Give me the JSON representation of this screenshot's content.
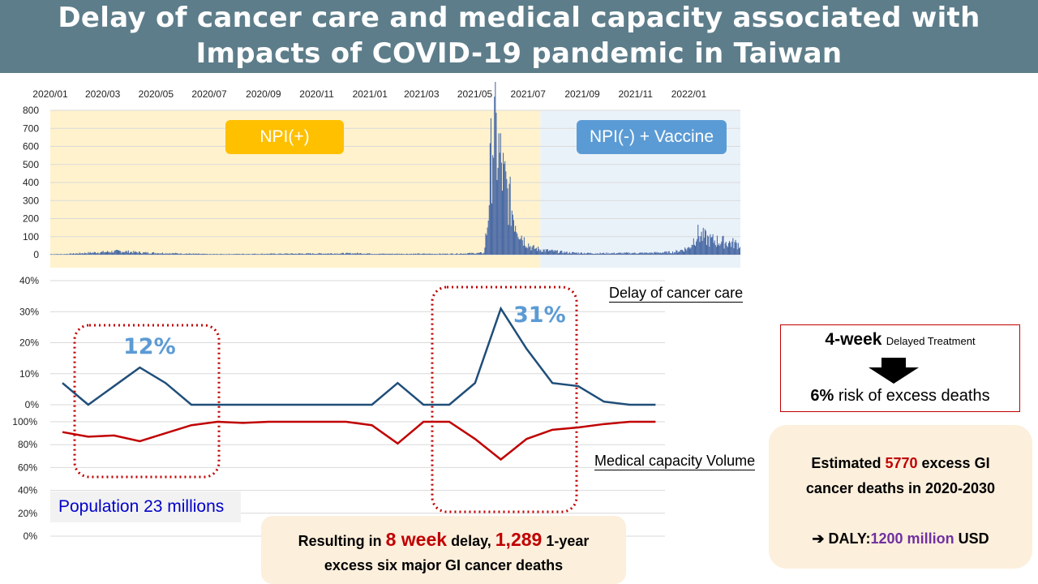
{
  "title": {
    "line1": "Delay of cancer care and medical capacity associated with",
    "line2": "Impacts of COVID-19 pandemic in Taiwan"
  },
  "colors": {
    "title_bg": "#5d7d8a",
    "npi_pos_bg": "#fff2cc",
    "npi_neg_bg": "#eaf2f9",
    "cases_bar": "#4a6aa5",
    "delay_line": "#1f4e79",
    "capacity_line": "#c00000",
    "accent_blue": "#5b9bd5",
    "accent_red": "#c00000",
    "accent_purple": "#7030a0"
  },
  "annotations": {
    "npi_pos": "NPI(+)",
    "npi_neg": "NPI(-) + Vaccine",
    "delay_label": "Delay of cancer care",
    "capacity_label": "Medical capacity Volume",
    "peak1_label": "12%",
    "peak2_label": "31%",
    "population": "Population 23 millions"
  },
  "result_box": {
    "p1": "Resulting in ",
    "weeks": "8 week",
    "p2": " delay, ",
    "deaths": "1,289",
    "p3": " 1-year",
    "line2": "excess six major GI cancer deaths"
  },
  "risk_box": {
    "top_bold": "4-week",
    "top_small": "Delayed Treatment",
    "bottom_bold": "6%",
    "bottom_rest": " risk of excess deaths"
  },
  "estimate_box": {
    "p1": "Estimated ",
    "num": "5770",
    "p2": " excess GI",
    "line2": "cancer deaths in 2020-2030",
    "arrow": "➔ DALY:",
    "daly": "1200 million",
    "usd": " USD"
  },
  "chart_data": [
    {
      "type": "bar",
      "title": "",
      "x_ticks": [
        "2020/01",
        "2020/03",
        "2020/05",
        "2020/07",
        "2020/09",
        "2020/11",
        "2021/01",
        "2021/03",
        "2021/05",
        "2021/07",
        "2021/09",
        "2021/11",
        "2022/01"
      ],
      "y_ticks": [
        0,
        100,
        200,
        300,
        400,
        500,
        600,
        700,
        800
      ],
      "ylim": [
        0,
        800
      ],
      "x_start": "2020-01-01",
      "period_split": "2021-07-15",
      "description_points": [
        {
          "date": "2020-01-15",
          "value": 3
        },
        {
          "date": "2020-03-20",
          "value": 20
        },
        {
          "date": "2020-04-15",
          "value": 12
        },
        {
          "date": "2020-07-01",
          "value": 3
        },
        {
          "date": "2020-12-20",
          "value": 8
        },
        {
          "date": "2021-01-10",
          "value": 5
        },
        {
          "date": "2021-04-01",
          "value": 5
        },
        {
          "date": "2021-05-11",
          "value": 10
        },
        {
          "date": "2021-05-15",
          "value": 180
        },
        {
          "date": "2021-05-18",
          "value": 450
        },
        {
          "date": "2021-05-21",
          "value": 720
        },
        {
          "date": "2021-05-25",
          "value": 650
        },
        {
          "date": "2021-05-29",
          "value": 560
        },
        {
          "date": "2021-06-03",
          "value": 420
        },
        {
          "date": "2021-06-10",
          "value": 300
        },
        {
          "date": "2021-06-17",
          "value": 180
        },
        {
          "date": "2021-06-25",
          "value": 90
        },
        {
          "date": "2021-07-05",
          "value": 40
        },
        {
          "date": "2021-07-20",
          "value": 25
        },
        {
          "date": "2021-08-15",
          "value": 12
        },
        {
          "date": "2021-09-15",
          "value": 8
        },
        {
          "date": "2021-11-15",
          "value": 10
        },
        {
          "date": "2021-12-15",
          "value": 15
        },
        {
          "date": "2022-01-01",
          "value": 40
        },
        {
          "date": "2022-01-10",
          "value": 120
        },
        {
          "date": "2022-01-25",
          "value": 85
        },
        {
          "date": "2022-02-15",
          "value": 70
        },
        {
          "date": "2022-02-28",
          "value": 60
        }
      ]
    },
    {
      "type": "line",
      "title": "",
      "y_ticks": [
        "0%",
        "10%",
        "20%",
        "30%",
        "40%"
      ],
      "ylim": [
        0,
        40
      ],
      "x": [
        "2020-01",
        "2020-02",
        "2020-03",
        "2020-04",
        "2020-05",
        "2020-06",
        "2020-07",
        "2020-08",
        "2020-09",
        "2020-10",
        "2020-11",
        "2020-12",
        "2021-01",
        "2021-02",
        "2021-03",
        "2021-04",
        "2021-05",
        "2021-06",
        "2021-07",
        "2021-08",
        "2021-09",
        "2021-10",
        "2021-11",
        "2021-12"
      ],
      "series": [
        {
          "name": "Delay of cancer care",
          "values": [
            7,
            0,
            6,
            12,
            7,
            0,
            0,
            0,
            0,
            0,
            0,
            0,
            0,
            7,
            0,
            0,
            7,
            31,
            18,
            7,
            6,
            1,
            0,
            0
          ]
        }
      ]
    },
    {
      "type": "line",
      "title": "",
      "y_ticks": [
        "0%",
        "20%",
        "40%",
        "60%",
        "80%",
        "100%"
      ],
      "ylim": [
        0,
        100
      ],
      "x": [
        "2020-01",
        "2020-02",
        "2020-03",
        "2020-04",
        "2020-05",
        "2020-06",
        "2020-07",
        "2020-08",
        "2020-09",
        "2020-10",
        "2020-11",
        "2020-12",
        "2021-01",
        "2021-02",
        "2021-03",
        "2021-04",
        "2021-05",
        "2021-06",
        "2021-07",
        "2021-08",
        "2021-09",
        "2021-10",
        "2021-11",
        "2021-12"
      ],
      "series": [
        {
          "name": "Medical capacity Volume",
          "values": [
            91,
            87,
            88,
            83,
            90,
            97,
            100,
            99,
            100,
            100,
            100,
            100,
            97,
            81,
            100,
            100,
            85,
            67,
            85,
            93,
            95,
            98,
            100,
            100
          ]
        }
      ]
    }
  ]
}
